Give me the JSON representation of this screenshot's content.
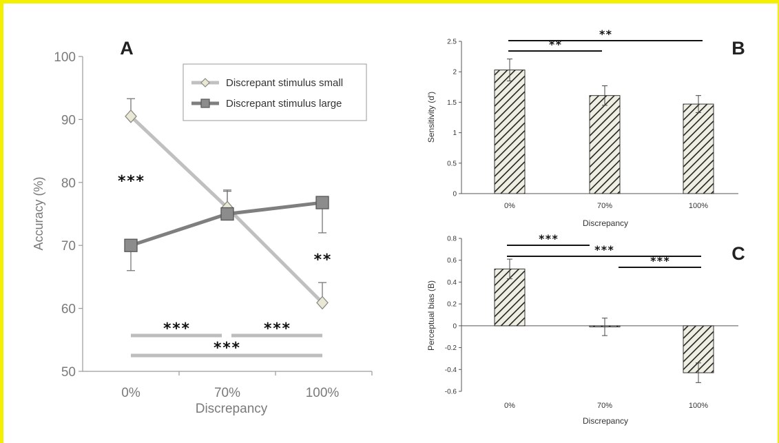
{
  "chart_data": [
    {
      "panel": "A",
      "type": "line",
      "xlabel": "Discrepancy",
      "ylabel": "Accuracy (%)",
      "categories": [
        "0%",
        "70%",
        "100%"
      ],
      "ylim": [
        50,
        100
      ],
      "yticks": [
        "50",
        "60",
        "70",
        "80",
        "90",
        "100"
      ],
      "legend_position": "top-right",
      "series": [
        {
          "name": "Discrepant stimulus small",
          "values": [
            90.5,
            76.0,
            60.9
          ],
          "errors": [
            2.8,
            2.8,
            3.2
          ],
          "marker": "diamond",
          "color": "#c0c0c0"
        },
        {
          "name": "Discrepant stimulus large",
          "values": [
            70.0,
            75.0,
            76.8
          ],
          "errors": [
            4.0,
            3.6,
            4.8
          ],
          "marker": "square",
          "color": "#7f7f7f"
        }
      ],
      "annotations": [
        {
          "label": "***",
          "category": "0%"
        },
        {
          "label": "**",
          "category": "100%"
        }
      ],
      "brackets": [
        {
          "from": "0%",
          "to": "70%",
          "label": "***"
        },
        {
          "from": "70%",
          "to": "100%",
          "label": "***"
        },
        {
          "from": "0%",
          "to": "100%",
          "label": "***"
        }
      ]
    },
    {
      "panel": "B",
      "type": "bar",
      "xlabel": "Discrepancy",
      "ylabel": "Sensitivity (d')",
      "categories": [
        "0%",
        "70%",
        "100%"
      ],
      "values": [
        2.03,
        1.61,
        1.47
      ],
      "errors": [
        0.18,
        0.16,
        0.14
      ],
      "ylim": [
        0,
        2.5
      ],
      "yticks": [
        "0",
        "0.5",
        "1",
        "1.5",
        "2",
        "2.5"
      ],
      "brackets": [
        {
          "from": "0%",
          "to": "70%",
          "label": "**"
        },
        {
          "from": "0%",
          "to": "100%",
          "label": "**"
        }
      ]
    },
    {
      "panel": "C",
      "type": "bar",
      "xlabel": "Discrepancy",
      "ylabel": "Perceptual bias (B)",
      "categories": [
        "0%",
        "70%",
        "100%"
      ],
      "values": [
        0.52,
        -0.01,
        -0.43
      ],
      "errors": [
        0.09,
        0.08,
        0.09
      ],
      "ylim": [
        -0.6,
        0.8
      ],
      "yticks": [
        "-0.6",
        "-0.4",
        "-0.2",
        "0",
        "0.2",
        "0.4",
        "0.6",
        "0.8"
      ],
      "brackets": [
        {
          "from": "0%",
          "to": "70%",
          "label": "***"
        },
        {
          "from": "0%",
          "to": "100%",
          "label": "***"
        },
        {
          "from": "70%",
          "to": "100%",
          "label": "***"
        }
      ]
    }
  ]
}
